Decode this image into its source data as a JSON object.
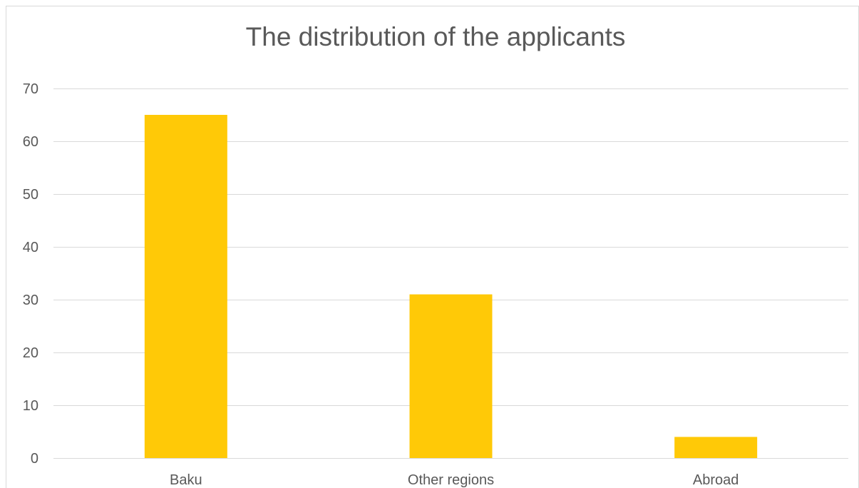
{
  "chart_data": {
    "type": "bar",
    "title": "The distribution of the applicants",
    "categories": [
      "Baku",
      "Other regions",
      "Abroad"
    ],
    "values": [
      65,
      31,
      4
    ],
    "ylim": [
      0,
      70
    ],
    "yticks": [
      0,
      10,
      20,
      30,
      40,
      50,
      60,
      70
    ],
    "grid": true,
    "legend": "none",
    "colors": {
      "bar": "#FFC907",
      "grid": "#D9D9D9",
      "text": "#595959"
    }
  }
}
